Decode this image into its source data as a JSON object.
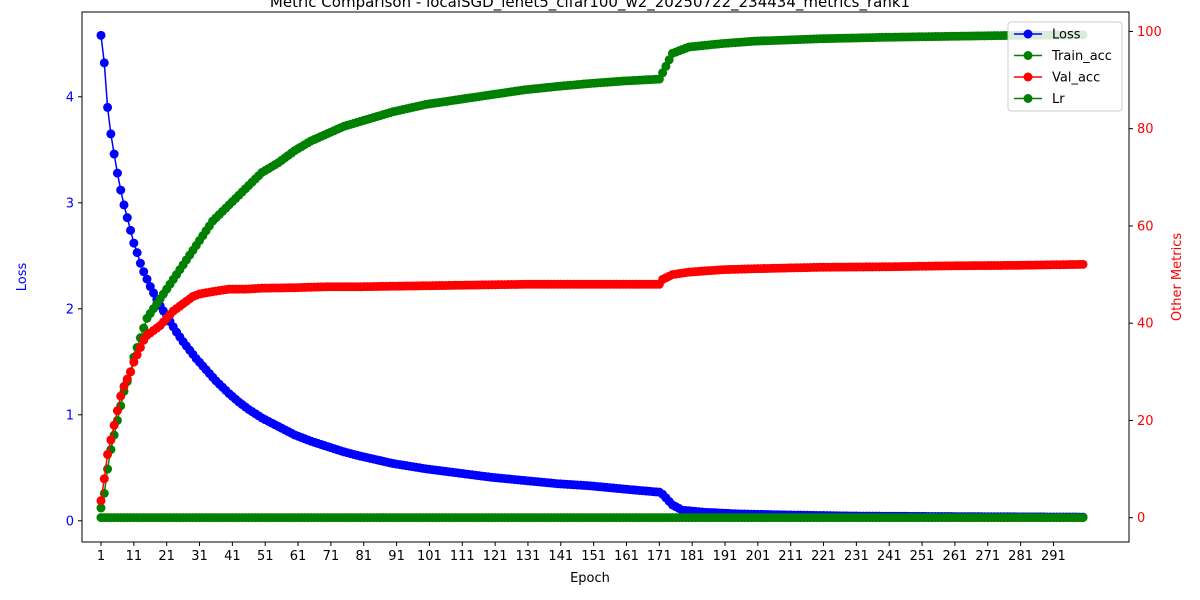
{
  "chart_data": {
    "type": "line",
    "title": "Metric Comparison - localSGD_lenet5_cifar100_w2_20250722_234434_metrics_rank1",
    "xlabel": "Epoch",
    "ylabel_left": "Loss",
    "ylabel_right": "Other Metrics",
    "xlim": [
      1,
      300
    ],
    "ylim_left": [
      -0.2,
      4.8
    ],
    "ylim_right": [
      -5,
      104
    ],
    "x_ticks": [
      1,
      11,
      21,
      31,
      41,
      51,
      61,
      71,
      81,
      91,
      101,
      111,
      121,
      131,
      141,
      151,
      161,
      171,
      181,
      191,
      201,
      211,
      221,
      231,
      241,
      251,
      261,
      271,
      281,
      291
    ],
    "y_ticks_left": [
      0,
      1,
      2,
      3,
      4
    ],
    "y_ticks_right": [
      0,
      20,
      40,
      60,
      80,
      100
    ],
    "grid": false,
    "legend_position": "top-right",
    "colors": {
      "left_axis": "#0000ff",
      "right_axis": "#ff0000"
    },
    "series": [
      {
        "name": "Loss",
        "axis": "left",
        "color": "#0000ff",
        "points": [
          [
            1,
            4.58
          ],
          [
            2,
            4.32
          ],
          [
            3,
            3.9
          ],
          [
            4,
            3.65
          ],
          [
            5,
            3.46
          ],
          [
            6,
            3.28
          ],
          [
            7,
            3.12
          ],
          [
            8,
            2.98
          ],
          [
            9,
            2.86
          ],
          [
            10,
            2.74
          ],
          [
            11,
            2.62
          ],
          [
            12,
            2.53
          ],
          [
            13,
            2.43
          ],
          [
            14,
            2.35
          ],
          [
            15,
            2.28
          ],
          [
            16,
            2.21
          ],
          [
            17,
            2.15
          ],
          [
            18,
            2.09
          ],
          [
            19,
            2.03
          ],
          [
            20,
            1.98
          ],
          [
            22,
            1.88
          ],
          [
            24,
            1.78
          ],
          [
            26,
            1.69
          ],
          [
            28,
            1.61
          ],
          [
            30,
            1.53
          ],
          [
            32,
            1.46
          ],
          [
            34,
            1.39
          ],
          [
            36,
            1.32
          ],
          [
            38,
            1.26
          ],
          [
            40,
            1.2
          ],
          [
            43,
            1.12
          ],
          [
            46,
            1.05
          ],
          [
            50,
            0.97
          ],
          [
            55,
            0.89
          ],
          [
            60,
            0.81
          ],
          [
            65,
            0.75
          ],
          [
            70,
            0.7
          ],
          [
            75,
            0.65
          ],
          [
            80,
            0.61
          ],
          [
            90,
            0.54
          ],
          [
            100,
            0.49
          ],
          [
            110,
            0.45
          ],
          [
            120,
            0.41
          ],
          [
            130,
            0.38
          ],
          [
            140,
            0.35
          ],
          [
            150,
            0.33
          ],
          [
            160,
            0.3
          ],
          [
            171,
            0.27
          ],
          [
            172,
            0.25
          ],
          [
            175,
            0.15
          ],
          [
            178,
            0.1
          ],
          [
            185,
            0.08
          ],
          [
            195,
            0.065
          ],
          [
            210,
            0.055
          ],
          [
            230,
            0.045
          ],
          [
            260,
            0.04
          ],
          [
            300,
            0.035
          ]
        ]
      },
      {
        "name": "Train_acc",
        "axis": "right",
        "color": "#008000",
        "points": [
          [
            1,
            2
          ],
          [
            2,
            5
          ],
          [
            3,
            10
          ],
          [
            4,
            14
          ],
          [
            5,
            17
          ],
          [
            6,
            20
          ],
          [
            7,
            23
          ],
          [
            8,
            26
          ],
          [
            9,
            28
          ],
          [
            10,
            30
          ],
          [
            11,
            33
          ],
          [
            12,
            35
          ],
          [
            13,
            37
          ],
          [
            14,
            39
          ],
          [
            15,
            41
          ],
          [
            17,
            43
          ],
          [
            19,
            45
          ],
          [
            21,
            47
          ],
          [
            23,
            49
          ],
          [
            25,
            51
          ],
          [
            27,
            53
          ],
          [
            29,
            55
          ],
          [
            31,
            57
          ],
          [
            33,
            59
          ],
          [
            35,
            61
          ],
          [
            38,
            63
          ],
          [
            41,
            65
          ],
          [
            44,
            67
          ],
          [
            47,
            69
          ],
          [
            50,
            71
          ],
          [
            55,
            73
          ],
          [
            60,
            75.5
          ],
          [
            65,
            77.5
          ],
          [
            70,
            79
          ],
          [
            75,
            80.5
          ],
          [
            80,
            81.5
          ],
          [
            90,
            83.5
          ],
          [
            100,
            85
          ],
          [
            110,
            86
          ],
          [
            120,
            87
          ],
          [
            130,
            88
          ],
          [
            140,
            88.7
          ],
          [
            150,
            89.3
          ],
          [
            160,
            89.8
          ],
          [
            171,
            90.2
          ],
          [
            172,
            91.5
          ],
          [
            175,
            95.5
          ],
          [
            180,
            96.8
          ],
          [
            190,
            97.5
          ],
          [
            200,
            98
          ],
          [
            220,
            98.5
          ],
          [
            240,
            98.8
          ],
          [
            260,
            99
          ],
          [
            280,
            99.2
          ],
          [
            300,
            99.3
          ]
        ]
      },
      {
        "name": "Val_acc",
        "axis": "right",
        "color": "#ff0000",
        "points": [
          [
            1,
            3.5
          ],
          [
            2,
            8
          ],
          [
            3,
            13
          ],
          [
            4,
            16
          ],
          [
            5,
            19
          ],
          [
            6,
            22
          ],
          [
            7,
            25
          ],
          [
            8,
            27
          ],
          [
            9,
            28.5
          ],
          [
            10,
            30
          ],
          [
            11,
            32
          ],
          [
            12,
            33.5
          ],
          [
            13,
            35
          ],
          [
            14,
            36.5
          ],
          [
            15,
            37.5
          ],
          [
            17,
            38.5
          ],
          [
            19,
            39.5
          ],
          [
            21,
            41
          ],
          [
            23,
            42.5
          ],
          [
            25,
            43.5
          ],
          [
            27,
            44.5
          ],
          [
            29,
            45.5
          ],
          [
            31,
            46
          ],
          [
            35,
            46.5
          ],
          [
            40,
            47
          ],
          [
            45,
            47
          ],
          [
            50,
            47.2
          ],
          [
            60,
            47.3
          ],
          [
            70,
            47.5
          ],
          [
            80,
            47.5
          ],
          [
            90,
            47.6
          ],
          [
            100,
            47.7
          ],
          [
            110,
            47.8
          ],
          [
            120,
            47.9
          ],
          [
            130,
            48
          ],
          [
            140,
            48
          ],
          [
            150,
            48
          ],
          [
            160,
            48
          ],
          [
            171,
            48
          ],
          [
            172,
            49
          ],
          [
            175,
            50
          ],
          [
            180,
            50.5
          ],
          [
            190,
            51
          ],
          [
            200,
            51.2
          ],
          [
            220,
            51.5
          ],
          [
            240,
            51.6
          ],
          [
            260,
            51.8
          ],
          [
            280,
            51.9
          ],
          [
            300,
            52.1
          ]
        ]
      },
      {
        "name": "Lr",
        "axis": "right",
        "color": "#008000",
        "points": [
          [
            1,
            0.02
          ],
          [
            300,
            0.02
          ]
        ]
      }
    ]
  }
}
